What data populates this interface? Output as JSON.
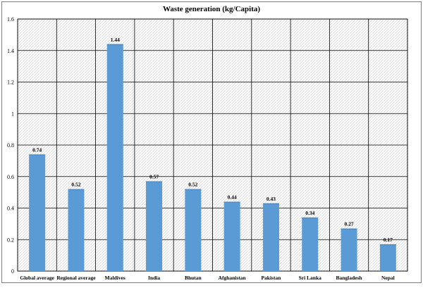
{
  "chart_data": {
    "type": "bar",
    "title": "Waste generation (kg/Capita)",
    "xlabel": "",
    "ylabel": "",
    "categories": [
      "Global average",
      "Regional average",
      "Maldives",
      "India",
      "Bhutan",
      "Afghanistan",
      "Pakistan",
      "Sri Lanka",
      "Bangladesh",
      "Nepal"
    ],
    "values": [
      0.74,
      0.52,
      1.44,
      0.57,
      0.52,
      0.44,
      0.43,
      0.34,
      0.27,
      0.17
    ],
    "value_labels": [
      "0.74",
      "0.52",
      "1.44",
      "0.57",
      "0.52",
      "0.44",
      "0.43",
      "0.34",
      "0.27",
      "0.17"
    ],
    "ylim": [
      0,
      1.6
    ],
    "yticks": [
      0,
      0.2,
      0.4,
      0.6,
      0.8,
      1,
      1.2,
      1.4,
      1.6
    ],
    "ytick_labels": [
      "0",
      "0.2",
      "0.4",
      "0.6",
      "0.8",
      "1",
      "1.2",
      "1.4",
      "1.6"
    ],
    "grid": true,
    "legend": "none",
    "colors": {
      "bar": "#5b9bd5",
      "bar_top": "#3f7fc1",
      "grid": "#000000",
      "plot_background": "#f0f0f0",
      "frame": "#7f7f7f"
    }
  }
}
